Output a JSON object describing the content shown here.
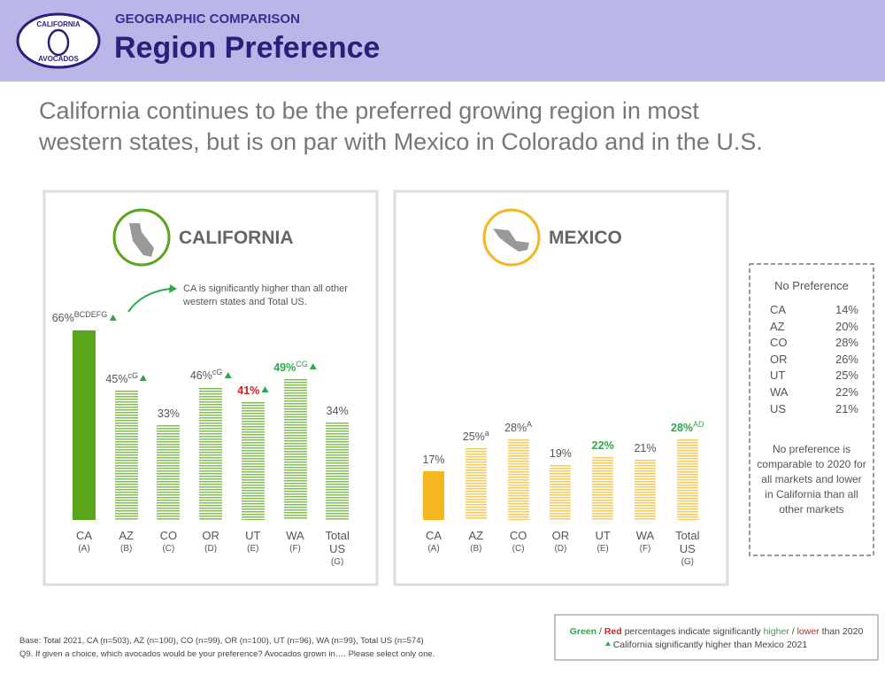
{
  "header": {
    "kicker": "GEOGRAPHIC COMPARISON",
    "title": "Region Preference",
    "logo_top": "CALIFORNIA",
    "logo_bottom": "AVOCADOS"
  },
  "headline": [
    "California continues to be the preferred growing region in most",
    "western states, but is on par with Mexico in Colorado and in the U.S."
  ],
  "chart_data": [
    {
      "type": "bar",
      "title": "CALIFORNIA",
      "annotation": "CA is significantly higher than all other western states and Total US.",
      "categories": [
        "CA",
        "AZ",
        "CO",
        "OR",
        "UT",
        "WA",
        "Total US"
      ],
      "category_codes": [
        "(A)",
        "(B)",
        "(C)",
        "(D)",
        "(E)",
        "(F)",
        "(G)"
      ],
      "values": [
        66,
        45,
        33,
        46,
        41,
        49,
        34
      ],
      "value_labels": [
        "66%",
        "45%",
        "33%",
        "46%",
        "41%",
        "49%",
        "34%"
      ],
      "superscripts": [
        "BCDEFG",
        "cG",
        null,
        "cG",
        null,
        "CG",
        null
      ],
      "triangles": [
        true,
        true,
        false,
        true,
        true,
        true,
        false
      ],
      "label_colors": [
        null,
        null,
        null,
        null,
        "#d0201a",
        "#2ea84a",
        null
      ],
      "highlight": [
        true,
        false,
        false,
        false,
        false,
        false,
        false
      ],
      "color": "#5aa51a"
    },
    {
      "type": "bar",
      "title": "MEXICO",
      "categories": [
        "CA",
        "AZ",
        "CO",
        "OR",
        "UT",
        "WA",
        "Total US"
      ],
      "category_codes": [
        "(A)",
        "(B)",
        "(C)",
        "(D)",
        "(E)",
        "(F)",
        "(G)"
      ],
      "values": [
        17,
        25,
        28,
        19,
        22,
        21,
        28
      ],
      "value_labels": [
        "17%",
        "25%",
        "28%",
        "19%",
        "22%",
        "21%",
        "28%"
      ],
      "superscripts": [
        null,
        "a",
        "A",
        null,
        null,
        null,
        "AD"
      ],
      "triangles": [
        false,
        false,
        false,
        false,
        false,
        false,
        false
      ],
      "label_colors": [
        null,
        null,
        null,
        null,
        "#2ea84a",
        null,
        "#2ea84a"
      ],
      "highlight": [
        true,
        false,
        false,
        false,
        false,
        false,
        false
      ],
      "color": "#f5b71f"
    }
  ],
  "no_preference": {
    "title": "No Preference",
    "rows": [
      [
        "CA",
        "14%"
      ],
      [
        "AZ",
        "20%"
      ],
      [
        "CO",
        "28%"
      ],
      [
        "OR",
        "26%"
      ],
      [
        "UT",
        "25%"
      ],
      [
        "WA",
        "22%"
      ],
      [
        "US",
        "21%"
      ]
    ],
    "note": "No preference is comparable to 2020 for all markets and lower in California than all other markets"
  },
  "legend": {
    "line1": [
      "Green",
      "/",
      "Red",
      "percentages indicate significantly",
      "higher",
      "/",
      "lower",
      "than 2020"
    ],
    "line2": "California significantly higher than Mexico 2021"
  },
  "footnote": [
    "Base: Total 2021, CA (n=503), AZ (n=100), CO (n=99), OR (n=100), UT (n=96), WA (n=99), Total US (n=574)",
    "Q9. If given a choice, which avocados would be your preference? Avocados grown in…. Please select only one."
  ]
}
